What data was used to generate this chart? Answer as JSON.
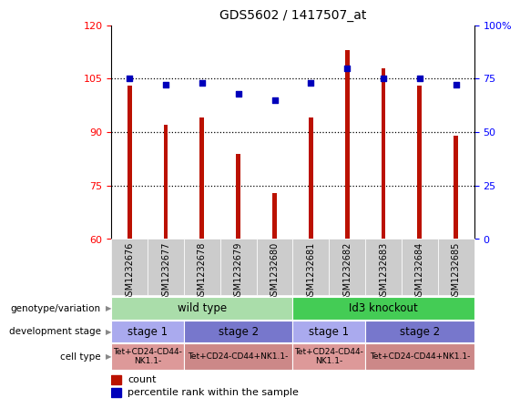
{
  "title": "GDS5602 / 1417507_at",
  "samples": [
    "GSM1232676",
    "GSM1232677",
    "GSM1232678",
    "GSM1232679",
    "GSM1232680",
    "GSM1232681",
    "GSM1232682",
    "GSM1232683",
    "GSM1232684",
    "GSM1232685"
  ],
  "counts": [
    103,
    92,
    94,
    84,
    73,
    94,
    113,
    108,
    103,
    89
  ],
  "percentiles": [
    75,
    72,
    73,
    68,
    65,
    73,
    80,
    75,
    75,
    72
  ],
  "ylim_left": [
    60,
    120
  ],
  "ylim_right": [
    0,
    100
  ],
  "yticks_left": [
    60,
    75,
    90,
    105,
    120
  ],
  "yticks_right": [
    0,
    25,
    50,
    75,
    100
  ],
  "bar_color": "#bb1100",
  "dot_color": "#0000bb",
  "genotype_groups": [
    {
      "label": "wild type",
      "start": 0,
      "end": 5,
      "color": "#aaddaa"
    },
    {
      "label": "Id3 knockout",
      "start": 5,
      "end": 10,
      "color": "#44cc55"
    }
  ],
  "stage_groups": [
    {
      "label": "stage 1",
      "start": 0,
      "end": 2,
      "color": "#aaaaee"
    },
    {
      "label": "stage 2",
      "start": 2,
      "end": 5,
      "color": "#7777cc"
    },
    {
      "label": "stage 1",
      "start": 5,
      "end": 7,
      "color": "#aaaaee"
    },
    {
      "label": "stage 2",
      "start": 7,
      "end": 10,
      "color": "#7777cc"
    }
  ],
  "cell_groups": [
    {
      "label": "Tet+CD24-CD44-\nNK1.1-",
      "start": 0,
      "end": 2,
      "color": "#dd9999"
    },
    {
      "label": "Tet+CD24-CD44+NK1.1-",
      "start": 2,
      "end": 5,
      "color": "#cc8888"
    },
    {
      "label": "Tet+CD24-CD44-\nNK1.1-",
      "start": 5,
      "end": 7,
      "color": "#dd9999"
    },
    {
      "label": "Tet+CD24-CD44+NK1.1-",
      "start": 7,
      "end": 10,
      "color": "#cc8888"
    }
  ],
  "row_labels": [
    "genotype/variation",
    "development stage",
    "cell type"
  ],
  "xtick_bg": "#cccccc"
}
